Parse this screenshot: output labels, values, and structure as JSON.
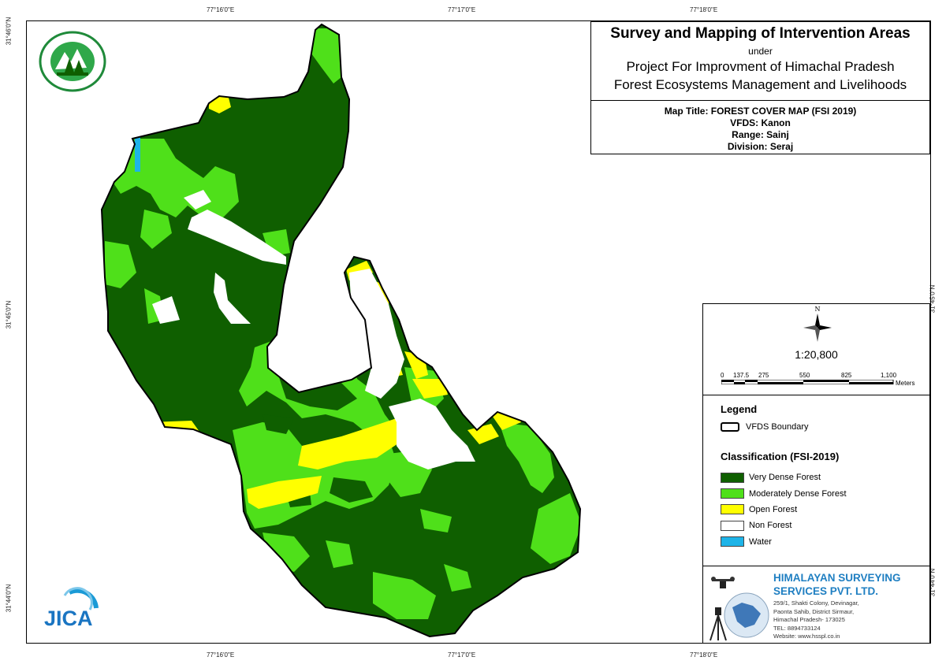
{
  "graticule": {
    "top": [
      "77°16'0\"E",
      "77°17'0\"E",
      "77°18'0\"E"
    ],
    "bottom": [
      "77°16'0\"E",
      "77°17'0\"E",
      "77°18'0\"E"
    ],
    "left": [
      "31°46'0\"N",
      "31°45'0\"N",
      "31°44'0\"N"
    ],
    "right": [
      "31°45'0\"N",
      "31°44'0\"N"
    ]
  },
  "title": {
    "main": "Survey and Mapping of Intervention Areas",
    "under": "under",
    "project_line1": "Project For Improvment of Himachal Pradesh",
    "project_line2": "Forest Ecosystems Management and Livelihoods"
  },
  "meta": {
    "map_title": "Map Title: FOREST COVER MAP (FSI 2019)",
    "vfds": "VFDS: Kanon",
    "range": "Range: Sainj",
    "division": "Division: Seraj"
  },
  "north_label": "N",
  "scale": {
    "ratio": "1:20,800",
    "labels": [
      "0",
      "137.5",
      "275",
      "550",
      "825",
      "1,100"
    ],
    "unit": "Meters"
  },
  "legend": {
    "title": "Legend",
    "boundary_label": "VFDS Boundary",
    "classification_title": "Classification (FSI-2019)",
    "classes": [
      {
        "label": "Very Dense Forest",
        "color": "#0f5f00"
      },
      {
        "label": "Moderately Dense Forest",
        "color": "#4fe01a"
      },
      {
        "label": "Open Forest",
        "color": "#ffff00"
      },
      {
        "label": "Non Forest",
        "color": "#ffffff"
      },
      {
        "label": "Water",
        "color": "#1eb4e8"
      }
    ]
  },
  "company": {
    "name_line1": "HIMALAYAN SURVEYING",
    "name_line2": "SERVICES PVT. LTD.",
    "addr1": "259/1, Shakti Colony, Devinagar,",
    "addr2": "Paonta Sahib, District Sirmaur,",
    "addr3": "Himachal Pradesh- 173025",
    "tel": "TEL: 8894733124",
    "web": "Website: www.hsspl.co.in"
  },
  "jica_logo": "JICA",
  "colors": {
    "very_dense": "#0f5f00",
    "moderately_dense": "#4fe01a",
    "open": "#ffff00",
    "non_forest": "#ffffff",
    "water": "#1eb4e8",
    "company_blue": "#1f7fc2"
  }
}
